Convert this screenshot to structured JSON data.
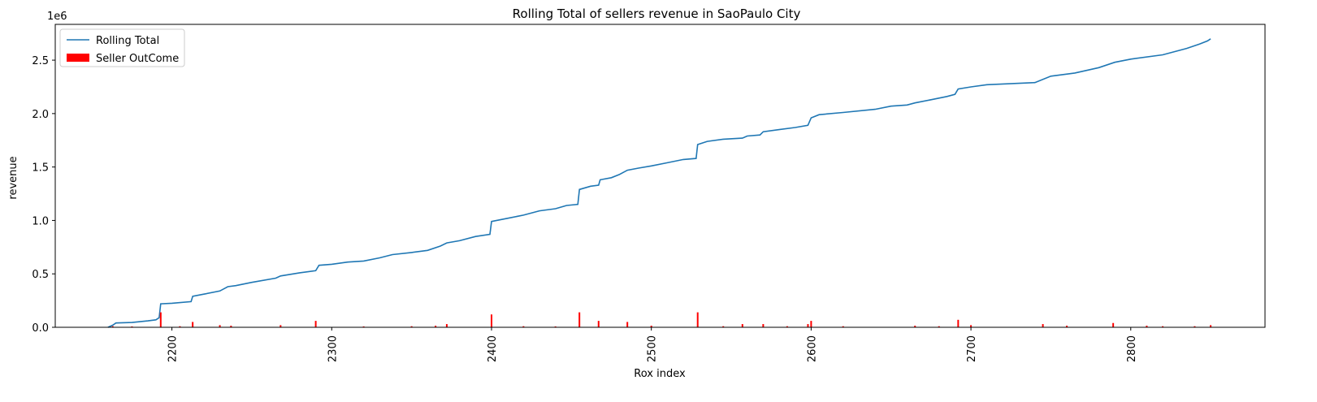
{
  "chart_data": {
    "type": "combo",
    "title": "Rolling Total of sellers revenue in SaoPaulo City",
    "x_label": "Rox index",
    "y_label": "revenue",
    "y_offset_label": "1e6",
    "xlim": [
      2127,
      2884
    ],
    "xticks": [
      2200,
      2300,
      2400,
      2500,
      2600,
      2700,
      2800
    ],
    "ylim": [
      0,
      2835000
    ],
    "yticks": [
      {
        "value": 0,
        "label": "0.0"
      },
      {
        "value": 500000,
        "label": "0.5"
      },
      {
        "value": 1000000,
        "label": "1.0"
      },
      {
        "value": 1500000,
        "label": "1.5"
      },
      {
        "value": 2000000,
        "label": "2.0"
      },
      {
        "value": 2500000,
        "label": "2.5"
      }
    ],
    "legend": "upper left",
    "series": [
      {
        "name": "Rolling Total",
        "type": "line",
        "color": "#1f77b4",
        "x": [
          2160,
          2163,
          2165,
          2175,
          2185,
          2190,
          2192,
          2193,
          2200,
          2212,
          2213,
          2220,
          2230,
          2235,
          2240,
          2250,
          2265,
          2268,
          2280,
          2290,
          2292,
          2300,
          2310,
          2320,
          2330,
          2338,
          2350,
          2360,
          2368,
          2372,
          2380,
          2390,
          2399,
          2400,
          2410,
          2420,
          2430,
          2440,
          2447,
          2454,
          2455,
          2462,
          2467,
          2468,
          2475,
          2480,
          2485,
          2492,
          2500,
          2510,
          2520,
          2528,
          2529,
          2535,
          2545,
          2557,
          2560,
          2568,
          2570,
          2580,
          2590,
          2598,
          2600,
          2605,
          2620,
          2640,
          2650,
          2660,
          2665,
          2675,
          2685,
          2690,
          2692,
          2700,
          2710,
          2740,
          2750,
          2765,
          2780,
          2790,
          2800,
          2820,
          2835,
          2843,
          2848,
          2850
        ],
        "values": [
          0,
          20000,
          40000,
          45000,
          60000,
          70000,
          90000,
          220000,
          225000,
          240000,
          290000,
          310000,
          340000,
          380000,
          390000,
          420000,
          460000,
          480000,
          510000,
          530000,
          580000,
          590000,
          610000,
          620000,
          650000,
          680000,
          700000,
          720000,
          760000,
          790000,
          810000,
          850000,
          870000,
          990000,
          1020000,
          1050000,
          1090000,
          1110000,
          1140000,
          1150000,
          1290000,
          1320000,
          1330000,
          1380000,
          1400000,
          1430000,
          1470000,
          1490000,
          1510000,
          1540000,
          1570000,
          1580000,
          1710000,
          1740000,
          1760000,
          1770000,
          1790000,
          1800000,
          1830000,
          1850000,
          1870000,
          1890000,
          1960000,
          1990000,
          2010000,
          2040000,
          2070000,
          2080000,
          2100000,
          2130000,
          2160000,
          2180000,
          2230000,
          2250000,
          2270000,
          2290000,
          2350000,
          2380000,
          2430000,
          2480000,
          2510000,
          2550000,
          2610000,
          2650000,
          2680000,
          2700000
        ]
      },
      {
        "name": "Seller OutCome",
        "type": "bar",
        "color": "#ff0000",
        "x": [
          2163,
          2175,
          2193,
          2205,
          2213,
          2230,
          2237,
          2268,
          2290,
          2320,
          2350,
          2365,
          2372,
          2400,
          2420,
          2440,
          2455,
          2467,
          2485,
          2500,
          2529,
          2545,
          2557,
          2570,
          2585,
          2598,
          2600,
          2620,
          2665,
          2680,
          2692,
          2700,
          2745,
          2760,
          2789,
          2810,
          2820,
          2840,
          2850
        ],
        "values": [
          10000,
          8000,
          140000,
          10000,
          50000,
          20000,
          15000,
          20000,
          60000,
          8000,
          10000,
          15000,
          30000,
          120000,
          10000,
          8000,
          140000,
          60000,
          50000,
          15000,
          140000,
          10000,
          30000,
          30000,
          10000,
          30000,
          60000,
          10000,
          15000,
          10000,
          70000,
          20000,
          30000,
          15000,
          40000,
          15000,
          10000,
          10000,
          20000
        ]
      }
    ]
  }
}
